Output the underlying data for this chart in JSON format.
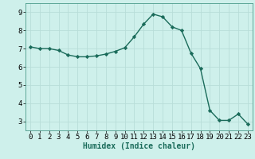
{
  "xlabel": "Humidex (Indice chaleur)",
  "x_values": [
    0,
    1,
    2,
    3,
    4,
    5,
    6,
    7,
    8,
    9,
    10,
    11,
    12,
    13,
    14,
    15,
    16,
    17,
    18,
    19,
    20,
    21,
    22,
    23
  ],
  "y_values": [
    7.1,
    7.0,
    7.0,
    6.9,
    6.65,
    6.55,
    6.55,
    6.6,
    6.7,
    6.85,
    7.05,
    7.65,
    8.35,
    8.9,
    8.75,
    8.2,
    8.0,
    6.75,
    5.9,
    3.6,
    3.05,
    3.05,
    3.4,
    2.85
  ],
  "line_color": "#1a6b5a",
  "marker": "D",
  "marker_size": 2.2,
  "bg_color": "#cef0eb",
  "grid_color": "#b8ddd8",
  "ylim": [
    2.5,
    9.5
  ],
  "yticks": [
    3,
    4,
    5,
    6,
    7,
    8,
    9
  ],
  "xticks": [
    0,
    1,
    2,
    3,
    4,
    5,
    6,
    7,
    8,
    9,
    10,
    11,
    12,
    13,
    14,
    15,
    16,
    17,
    18,
    19,
    20,
    21,
    22,
    23
  ],
  "xlabel_fontsize": 7,
  "tick_fontsize": 6.5,
  "linewidth": 1.0
}
